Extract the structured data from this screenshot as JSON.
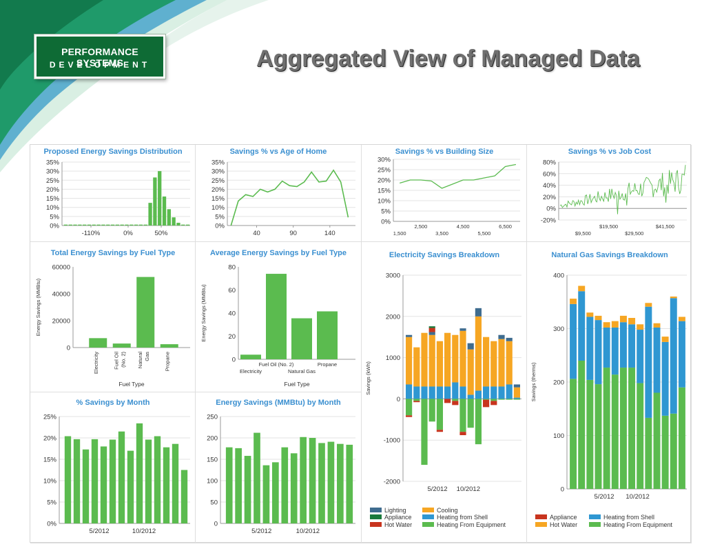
{
  "header": {
    "logo_line1": "PERFORMANCE SYSTEMS",
    "logo_line2": "DEVELOPMENT",
    "title": "Aggregated View of Managed Data"
  },
  "colors": {
    "green": "#5bbb4f",
    "lightning": "#3f6c8f",
    "appliance": "#1a7a3c",
    "hotwater": "#c8341e",
    "cooling": "#f6a623",
    "shell": "#2f97d2",
    "grid": "#e3e3e3",
    "title": "#3a8fd0"
  },
  "chart_data": [
    {
      "id": "c1",
      "type": "bar",
      "title": "Proposed Energy Savings Distribution",
      "ytick_labels": [
        "35%",
        "30%",
        "25%",
        "20%",
        "15%",
        "10%",
        "5%",
        "0%"
      ],
      "ylim": [
        0,
        35
      ],
      "xtick_labels": [
        "-110%",
        "0%",
        "50%"
      ],
      "values": [
        0.5,
        0.5,
        0.5,
        0.5,
        0.5,
        0.5,
        0.5,
        0.5,
        0.5,
        0.5,
        0.5,
        0.5,
        0.5,
        0.5,
        0.5,
        0.5,
        0.5,
        0.5,
        12.5,
        26.5,
        30,
        16,
        9,
        4.5,
        1.5,
        0.5,
        0.5
      ]
    },
    {
      "id": "c2",
      "type": "line",
      "title": "Savings % vs Age of Home",
      "ytick_labels": [
        "35%",
        "30%",
        "25%",
        "20%",
        "15%",
        "10%",
        "5%",
        "0%"
      ],
      "ylim": [
        0,
        35
      ],
      "xtick_labels": [
        "40",
        "90",
        "140"
      ],
      "xticks": [
        40,
        90,
        140
      ],
      "x": [
        5,
        15,
        25,
        35,
        45,
        55,
        65,
        75,
        85,
        95,
        105,
        115,
        125,
        135,
        145,
        155,
        165
      ],
      "y": [
        0,
        13.5,
        17,
        16,
        20,
        18.5,
        20,
        24.5,
        22,
        21.5,
        24,
        29.5,
        24,
        24.5,
        30.5,
        24,
        4.5
      ],
      "xlim": [
        0,
        175
      ]
    },
    {
      "id": "c3",
      "type": "line",
      "title": "Savings % vs Building Size",
      "ytick_labels": [
        "30%",
        "25%",
        "20%",
        "15%",
        "10%",
        "5%",
        "0%"
      ],
      "ylim": [
        0,
        30
      ],
      "xtick_labels_top": [
        "2,500",
        "4,500",
        "6,500"
      ],
      "xtick_labels_bottom": [
        "1,500",
        "3,500",
        "5,500"
      ],
      "x": [
        1500,
        2000,
        2500,
        3000,
        3500,
        4000,
        4500,
        5000,
        5500,
        6000,
        6500,
        7000
      ],
      "y": [
        18.5,
        20,
        20,
        19.5,
        16,
        18,
        20,
        20,
        21,
        22,
        26.5,
        27.5
      ],
      "xlim": [
        1200,
        7200
      ]
    },
    {
      "id": "c4",
      "type": "line",
      "title": "Savings % vs Job Cost",
      "ytick_labels": [
        "80%",
        "60%",
        "40%",
        "20%",
        "0%",
        "-20%"
      ],
      "ylim": [
        -20,
        80
      ],
      "xtick_labels_top": [
        "$19,500",
        "$41,500"
      ],
      "xtick_labels_bottom": [
        "$9,500",
        "$29,500"
      ],
      "xlim": [
        0,
        50000
      ]
    },
    {
      "id": "c5",
      "type": "bar",
      "title": "Total Energy Savings by Fuel Type",
      "ylabel": "Energy Savings (MMBtu)",
      "xlabel": "Fuel Type",
      "ytick_labels": [
        "60000",
        "40000",
        "20000",
        "0"
      ],
      "ylim": [
        0,
        60000
      ],
      "categories": [
        "Electricity",
        "Fuel Oil (No. 2)",
        "Natural Gas",
        "Propane"
      ],
      "category_lines": [
        [
          "Electricity"
        ],
        [
          "Fuel Oil",
          "(No. 2)"
        ],
        [
          "Natural",
          "Gas"
        ],
        [
          "Propane"
        ]
      ],
      "values": [
        7000,
        3000,
        52500,
        2500
      ]
    },
    {
      "id": "c6",
      "type": "bar",
      "title": "Average Energy Savings by Fuel Type",
      "ylabel": "Energy Savings (MMBtu)",
      "xlabel": "Fuel Type",
      "ytick_labels": [
        "80",
        "60",
        "40",
        "20",
        "0"
      ],
      "ylim": [
        0,
        80
      ],
      "categories": [
        "Electricity",
        "Fuel Oil (No. 2)",
        "Natural Gas",
        "Propane"
      ],
      "values": [
        4,
        74,
        35.5,
        41.5
      ]
    },
    {
      "id": "c7",
      "type": "bar",
      "title": "% Savings by Month",
      "ytick_labels": [
        "25%",
        "20%",
        "15%",
        "10%",
        "5%",
        "0%"
      ],
      "ylim": [
        0,
        25
      ],
      "xtick_labels": [
        "5/2012",
        "10/2012"
      ],
      "values": [
        20.4,
        19.7,
        17.3,
        19.7,
        18,
        19.6,
        21.5,
        17,
        23.4,
        19.6,
        20.4,
        17.8,
        18.6,
        12.5
      ]
    },
    {
      "id": "c8",
      "type": "bar",
      "title": "Energy Savings (MMBtu) by Month",
      "ytick_labels": [
        "250",
        "200",
        "150",
        "100",
        "50",
        "0"
      ],
      "ylim": [
        0,
        250
      ],
      "xtick_labels": [
        "5/2012",
        "10/2012"
      ],
      "values": [
        178,
        176,
        158,
        212,
        136,
        143,
        178,
        164,
        202,
        200,
        188,
        191,
        186,
        184
      ]
    },
    {
      "id": "c9",
      "type": "bar",
      "title": "Electricity Savings Breakdown",
      "ylabel": "Savings (kWh)",
      "ytick_labels": [
        "3000",
        "2000",
        "1000",
        "0",
        "-1000",
        "-2000"
      ],
      "ylim": [
        -2000,
        3000
      ],
      "xtick_labels": [
        "5/2012",
        "10/2012"
      ],
      "series": [
        {
          "name": "Lighting",
          "color": "#3f6c8f",
          "values": [
            50,
            0,
            0,
            70,
            0,
            0,
            0,
            60,
            150,
            200,
            0,
            0,
            100,
            80,
            70
          ]
        },
        {
          "name": "Cooling",
          "color": "#f6a623",
          "values": [
            1150,
            950,
            1300,
            1250,
            1100,
            1300,
            1150,
            1350,
            1100,
            1800,
            1200,
            1100,
            1150,
            1050,
            250
          ]
        },
        {
          "name": "Heating from Shell",
          "color": "#2f97d2",
          "values": [
            350,
            300,
            300,
            300,
            300,
            300,
            400,
            300,
            100,
            200,
            300,
            300,
            300,
            350,
            30
          ]
        },
        {
          "name": "Heating From Equipment",
          "color": "#5bbb4f",
          "values": [
            -400,
            -50,
            -1600,
            -550,
            -750,
            0,
            -50,
            -800,
            -700,
            -1100,
            -20,
            -50,
            -20,
            -20,
            -20
          ]
        },
        {
          "name": "Hot Water",
          "color": "#c8341e",
          "values": [
            -40,
            -30,
            0,
            0,
            -50,
            -100,
            -100,
            -80,
            0,
            0,
            -180,
            -100,
            0,
            0,
            0
          ]
        },
        {
          "name": "Appliance",
          "color": "#1a7a3c",
          "values": [
            0,
            0,
            0,
            0,
            0,
            0,
            0,
            0,
            0,
            0,
            0,
            0,
            0,
            0,
            0
          ]
        }
      ],
      "legend": [
        "Lighting",
        "Cooling",
        "Appliance",
        "Heating from Shell",
        "Hot Water",
        "Heating From Equipment"
      ],
      "extras": {
        "top_red_index": 3,
        "top_red_value": 100,
        "top_dark_green_index": 3,
        "top_dark_green_value": 40,
        "orange_extra_index": 13
      }
    },
    {
      "id": "c10",
      "type": "bar",
      "title": "Natural Gas Savings Breakdown",
      "ylabel": "Savings (therms)",
      "ytick_labels": [
        "400",
        "300",
        "200",
        "100",
        "0"
      ],
      "ylim": [
        0,
        400
      ],
      "xtick_labels": [
        "5/2012",
        "10/2012"
      ],
      "series": [
        {
          "name": "Heating From Equipment",
          "color": "#5bbb4f",
          "values": [
            206,
            240,
            204,
            196,
            227,
            214,
            227,
            227,
            198,
            133,
            180,
            137,
            141,
            190
          ]
        },
        {
          "name": "Heating from Shell",
          "color": "#2f97d2",
          "values": [
            140,
            130,
            118,
            120,
            75,
            88,
            85,
            81,
            100,
            208,
            122,
            138,
            216,
            124
          ]
        },
        {
          "name": "Hot Water",
          "color": "#f6a623",
          "values": [
            10,
            10,
            8,
            8,
            10,
            12,
            12,
            12,
            10,
            7,
            8,
            10,
            3,
            8
          ]
        },
        {
          "name": "Appliance",
          "color": "#c8341e",
          "values": [
            0,
            0,
            0,
            0,
            0,
            0,
            0,
            0,
            0,
            0,
            0,
            0,
            0,
            0
          ]
        }
      ],
      "legend": [
        "Appliance",
        "Heating from Shell",
        "Hot Water",
        "Heating From Equipment"
      ]
    }
  ]
}
